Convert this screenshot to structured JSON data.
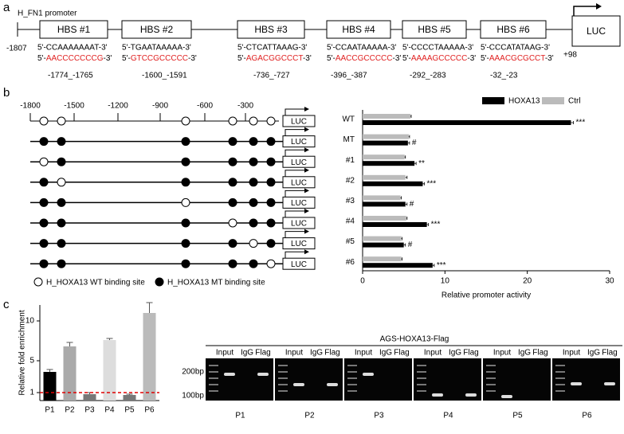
{
  "panel_labels": [
    "a",
    "b",
    "c"
  ],
  "promoter": {
    "title": "H_FN1 promoter",
    "start": "-1807",
    "end": "+98",
    "reporter": "LUC",
    "sites": [
      {
        "name": "HBS #1",
        "wt": "5'-CCAAAAAAAT-3'",
        "mt": [
          "5'-",
          "AACCCCCCCG",
          "-3'"
        ],
        "position": "-1774_-1765"
      },
      {
        "name": "HBS #2",
        "wt": "5'-TGAATAAAAA-3'",
        "mt": [
          "5'-",
          "GTCCGCCCCC",
          "-3'"
        ],
        "position": "-1600_-1591"
      },
      {
        "name": "HBS #3",
        "wt": "5'-CTCATTAAAG-3'",
        "mt": [
          "5'-",
          "AGACGGCCCT",
          "-3'"
        ],
        "position": "-736_-727"
      },
      {
        "name": "HBS #4",
        "wt": "5'-CCAATAAAAA-3'",
        "mt": [
          "5'-",
          "AACCGCCCCC",
          "-3'"
        ],
        "position": "-396_-387"
      },
      {
        "name": "HBS #5",
        "wt": "5'-CCCCTAAAAA-3'",
        "mt": [
          "5'-",
          "AAAAGCCCCC",
          "-3'"
        ],
        "position": "-292_-283"
      },
      {
        "name": "HBS #6",
        "wt": "5'-CCCATATAAG-3'",
        "mt": [
          "5'-",
          "AAACGCGCCT",
          "-3'"
        ],
        "position": "-32_-23"
      }
    ]
  },
  "constructs": {
    "ruler": [
      "-1800",
      "-1500",
      "-1200",
      "-900",
      "-600",
      "-300"
    ],
    "reporter": "LUC",
    "legend": [
      "H_HOXA13  WT binding site",
      "H_HOXA13  MT binding site"
    ]
  },
  "chart_data": [
    {
      "type": "hbar",
      "categories": [
        "WT",
        "MT",
        "#1",
        "#2",
        "#3",
        "#4",
        "#5",
        "#6"
      ],
      "series": [
        {
          "name": "HOXA13",
          "color": "#000000",
          "values": [
            25.3,
            5.5,
            6.3,
            7.3,
            5.2,
            7.8,
            5.0,
            8.5
          ],
          "errors": [
            0.3,
            0.2,
            0.2,
            0.2,
            0.2,
            0.2,
            0.2,
            0.2
          ]
        },
        {
          "name": "Ctrl",
          "color": "#bbbbbb",
          "values": [
            5.8,
            5.6,
            5.1,
            5.2,
            4.6,
            5.3,
            4.7,
            4.7
          ],
          "errors": [
            0.1,
            0.1,
            0.1,
            0.2,
            0.1,
            0.1,
            0.1,
            0.1
          ]
        }
      ],
      "annotations": [
        "***",
        "#",
        "**",
        "***",
        "#",
        "***",
        "#",
        "***"
      ],
      "xlabel": "Relative promoter activity",
      "xlim": [
        0,
        30
      ],
      "xticks": [
        0,
        10,
        20,
        30
      ]
    },
    {
      "type": "bar",
      "ylabel": "Relative fold enrichment",
      "categories": [
        "P1",
        "P2",
        "P3",
        "P4",
        "P5",
        "P6"
      ],
      "values": [
        3.6,
        6.8,
        0.8,
        7.6,
        0.7,
        11.0
      ],
      "errors": [
        0.3,
        0.5,
        0.2,
        0.2,
        0.1,
        1.3
      ],
      "colors": [
        "#000000",
        "#aaaaaa",
        "#777777",
        "#dddddd",
        "#777777",
        "#bbbbbb"
      ],
      "ylim": [
        0,
        12
      ],
      "yticks": [
        1,
        5,
        10
      ],
      "reference_line": 1,
      "reference_color": "#e00000"
    }
  ],
  "gel": {
    "title": "AGS-HOXA13-Flag",
    "lanes": [
      "Input",
      "IgG",
      "Flag"
    ],
    "markers": [
      "200bp",
      "100bp"
    ],
    "panels": [
      "P1",
      "P2",
      "P3",
      "P4",
      "P5",
      "P6"
    ]
  }
}
